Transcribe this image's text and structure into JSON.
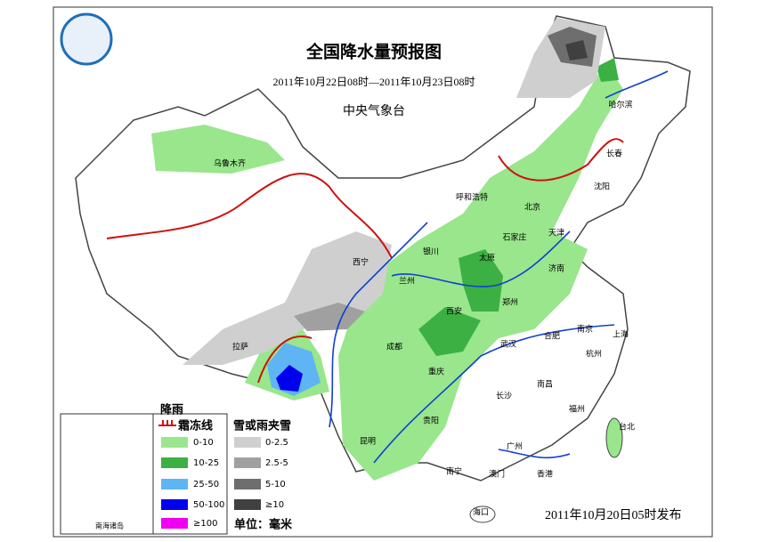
{
  "header": {
    "title": "全国降水量预报图",
    "period": "2011年10月22日08时—2011年10月23日08时",
    "issuer": "中央气象台"
  },
  "legend": {
    "rain_title": "降雨",
    "frost_line": "霜冻线",
    "snow_title": "雪或雨夹雪",
    "rain_items": [
      {
        "label": "0-10",
        "color": "#99e68c"
      },
      {
        "label": "10-25",
        "color": "#3cb043"
      },
      {
        "label": "25-50",
        "color": "#5fb4f4"
      },
      {
        "label": "50-100",
        "color": "#0000f0"
      },
      {
        "label": "≥100",
        "color": "#f000f0"
      }
    ],
    "snow_items": [
      {
        "label": "0-2.5",
        "color": "#cfcfcf"
      },
      {
        "label": "2.5-5",
        "color": "#a0a0a0"
      },
      {
        "label": "5-10",
        "color": "#6e6e6e"
      },
      {
        "label": "≥10",
        "color": "#404040"
      }
    ],
    "unit": "单位：毫米",
    "inset_label": "南海诸岛"
  },
  "cities": [
    "乌鲁木齐",
    "哈尔滨",
    "长春",
    "沈阳",
    "呼和浩特",
    "北京",
    "天津",
    "石家庄",
    "银川",
    "太原",
    "济南",
    "西宁",
    "兰州",
    "郑州",
    "西安",
    "南京",
    "上海",
    "合肥",
    "拉萨",
    "成都",
    "武汉",
    "杭州",
    "重庆",
    "长沙",
    "南昌",
    "福州",
    "贵阳",
    "台北",
    "昆明",
    "广州",
    "南宁",
    "澳门",
    "香港",
    "海口"
  ],
  "footer": "2011年10月20日05时发布"
}
